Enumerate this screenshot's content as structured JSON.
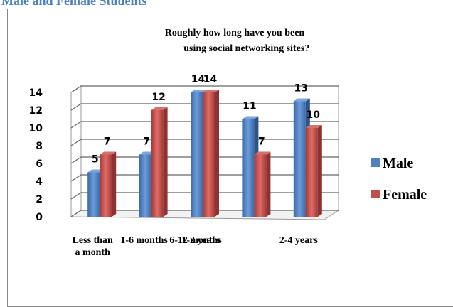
{
  "heading": "Male and Female Students",
  "chart_data": {
    "type": "bar",
    "title": "Roughly how long have you been using social networking sites?",
    "categories": [
      "Less than a month",
      "1-6 months",
      "6-12 months",
      "1-2 years",
      "2-4 years"
    ],
    "series": [
      {
        "name": "Male",
        "color": "#4f81bd",
        "values": [
          5,
          7,
          14,
          11,
          13
        ]
      },
      {
        "name": "Female",
        "color": "#c0504d",
        "values": [
          7,
          12,
          14,
          7,
          10
        ]
      }
    ],
    "ylim": [
      0,
      14
    ],
    "yticks": [
      0,
      2,
      4,
      6,
      8,
      10,
      12,
      14
    ],
    "grid": true,
    "legend": "right"
  }
}
